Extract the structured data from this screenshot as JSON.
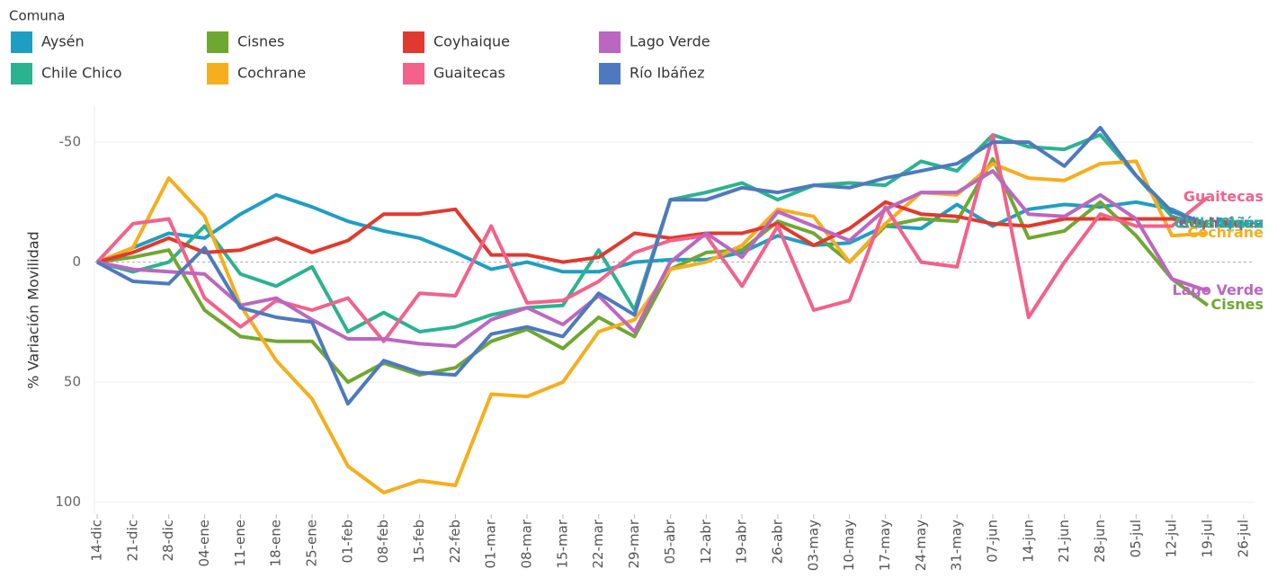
{
  "chart_data": {
    "type": "line",
    "legend_title": "Comuna",
    "ylabel": "% Variación Movilidad",
    "categories": [
      "14-dic",
      "21-dic",
      "28-dic",
      "04-ene",
      "11-ene",
      "18-ene",
      "25-ene",
      "01-feb",
      "08-feb",
      "15-feb",
      "22-feb",
      "01-mar",
      "08-mar",
      "15-mar",
      "22-mar",
      "29-mar",
      "05-abr",
      "12-abr",
      "19-abr",
      "26-abr",
      "03-may",
      "10-may",
      "17-may",
      "24-may",
      "31-may",
      "07-jun",
      "14-jun",
      "21-jun",
      "28-jun",
      "05-jul",
      "12-jul",
      "19-jul",
      "26-jul"
    ],
    "ylim": [
      -65,
      105
    ],
    "y_inverted": true,
    "yticks": [
      -50,
      0,
      50,
      100
    ],
    "grid": true,
    "series": [
      {
        "name": "Aysén",
        "color": "#1f9ec4",
        "values": [
          0,
          -6,
          -12,
          -10,
          -20,
          -28,
          -23,
          -17,
          -13,
          -10,
          -4,
          3,
          0,
          4,
          4,
          0,
          -1,
          -1,
          -4,
          -11,
          -7,
          -8,
          -15,
          -14,
          -24,
          -15,
          -22,
          -24,
          -23,
          -25,
          -22,
          -15,
          null
        ]
      },
      {
        "name": "Chile Chico",
        "color": "#2bb38f",
        "values": [
          0,
          4,
          0,
          -15,
          5,
          10,
          2,
          29,
          21,
          29,
          27,
          22,
          19,
          18,
          -5,
          20,
          -26,
          -29,
          -33,
          -26,
          -32,
          -33,
          -32,
          -42,
          -38,
          -53,
          -48,
          -47,
          -53,
          -36,
          -19,
          -15,
          null
        ]
      },
      {
        "name": "Cisnes",
        "color": "#6fa830",
        "values": [
          0,
          -2,
          -5,
          20,
          31,
          33,
          33,
          50,
          42,
          47,
          44,
          33,
          28,
          36,
          23,
          31,
          3,
          -4,
          -5,
          -17,
          -12,
          0,
          -15,
          -18,
          -17,
          -43,
          -10,
          -13,
          -25,
          -11,
          7,
          18,
          null
        ]
      },
      {
        "name": "Cochrane",
        "color": "#f5ae1e",
        "values": [
          0,
          -6,
          -35,
          -19,
          18,
          41,
          57,
          85,
          96,
          91,
          93,
          55,
          56,
          50,
          29,
          24,
          3,
          0,
          -7,
          -22,
          -19,
          0,
          -16,
          -29,
          -28,
          -41,
          -35,
          -34,
          -41,
          -42,
          -11,
          -12,
          null
        ]
      },
      {
        "name": "Coyhaique",
        "color": "#e03a2f",
        "values": [
          0,
          -4,
          -10,
          -4,
          -5,
          -10,
          -4,
          -9,
          -20,
          -20,
          -22,
          -3,
          -3,
          0,
          -2,
          -12,
          -10,
          -12,
          -12,
          -16,
          -7,
          -14,
          -25,
          -20,
          -19,
          -16,
          -15,
          -18,
          -18,
          -18,
          -18,
          -16,
          null
        ]
      },
      {
        "name": "Guaitecas",
        "color": "#f2628b",
        "values": [
          0,
          -16,
          -18,
          15,
          27,
          16,
          20,
          15,
          33,
          13,
          14,
          -15,
          17,
          16,
          8,
          -4,
          -9,
          -11,
          10,
          -15,
          20,
          16,
          -23,
          0,
          2,
          -53,
          23,
          0,
          -20,
          -15,
          -15,
          -27,
          null
        ]
      },
      {
        "name": "Lago Verde",
        "color": "#bb67c1",
        "values": [
          0,
          3,
          4,
          5,
          18,
          15,
          24,
          32,
          32,
          34,
          35,
          24,
          19,
          26,
          14,
          29,
          0,
          -12,
          -2,
          -21,
          -15,
          -9,
          -22,
          -29,
          -29,
          -38,
          -20,
          -19,
          -28,
          -18,
          7,
          12,
          null
        ]
      },
      {
        "name": "Río Ibáñez",
        "color": "#4e79be",
        "values": [
          0,
          8,
          9,
          -6,
          19,
          23,
          25,
          59,
          41,
          46,
          47,
          30,
          27,
          31,
          13,
          22,
          -26,
          -26,
          -31,
          -29,
          -32,
          -31,
          -35,
          -38,
          -41,
          -50,
          -50,
          -40,
          -56,
          -36,
          -21,
          -16,
          null
        ]
      }
    ]
  }
}
